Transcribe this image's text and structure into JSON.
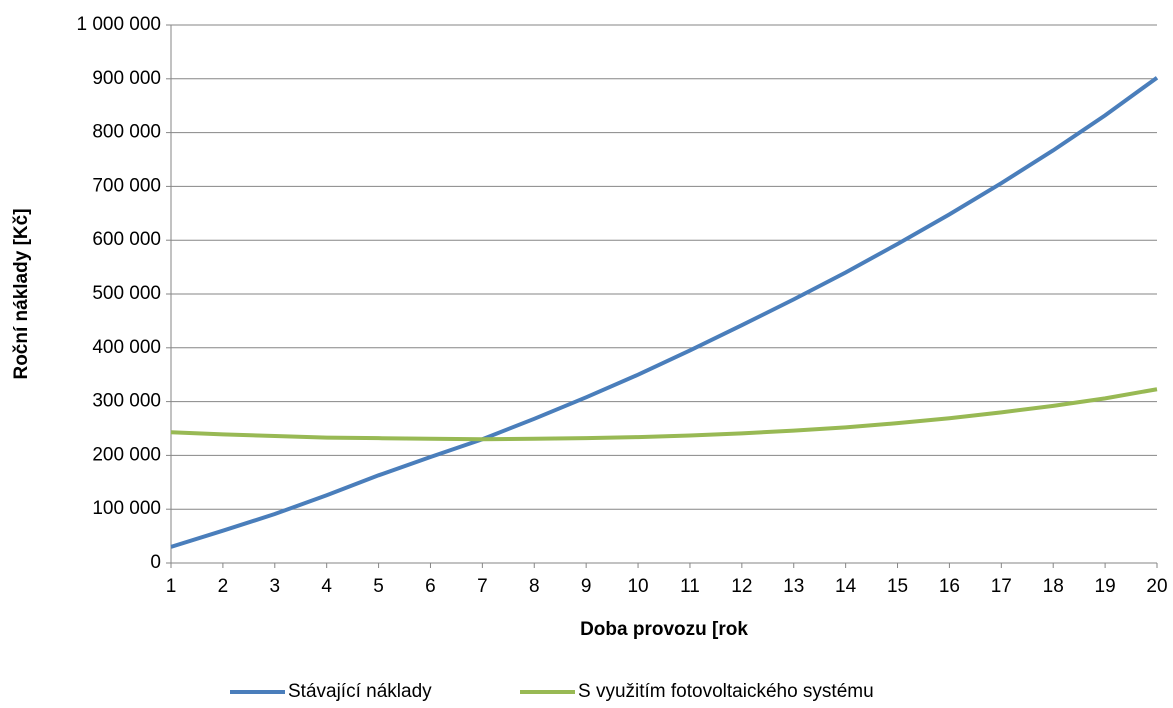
{
  "chart_data": {
    "type": "line",
    "ylabel": "Roční náklady [Kč]",
    "xlabel": "Doba provozu [rok",
    "x": [
      1,
      2,
      3,
      4,
      5,
      6,
      7,
      8,
      9,
      10,
      11,
      12,
      13,
      14,
      15,
      16,
      17,
      18,
      19,
      20
    ],
    "xlim": [
      1,
      20
    ],
    "xticks": [
      1,
      2,
      3,
      4,
      5,
      6,
      7,
      8,
      9,
      10,
      11,
      12,
      13,
      14,
      15,
      16,
      17,
      18,
      19,
      20
    ],
    "ylim": [
      0,
      1000000
    ],
    "yticks": [
      0,
      {
        "value": 100000,
        "label": "100 000"
      },
      {
        "value": 200000,
        "label": "200 000"
      },
      {
        "value": 300000,
        "label": "300 000"
      },
      {
        "value": 400000,
        "label": "400 000"
      },
      {
        "value": 500000,
        "label": "500 000"
      },
      {
        "value": 600000,
        "label": "600 000"
      },
      {
        "value": 700000,
        "label": "700 000"
      },
      {
        "value": 800000,
        "label": "800 000"
      },
      {
        "value": 900000,
        "label": "900 000"
      },
      {
        "value": 1000000,
        "label": "1 000 000"
      }
    ],
    "grid": true,
    "legend": "bottom",
    "series": [
      {
        "name": "Stávající náklady",
        "color": "#4a7ebb",
        "values": [
          30000,
          60000,
          91000,
          126000,
          163000,
          197000,
          230000,
          268000,
          308000,
          350000,
          395000,
          442000,
          490000,
          540000,
          593000,
          648000,
          706000,
          767000,
          832000,
          902000
        ]
      },
      {
        "name": "S využitím fotovoltaického systému",
        "color": "#98b954",
        "values": [
          243000,
          239000,
          236000,
          233000,
          232000,
          231000,
          230000,
          231000,
          232000,
          234000,
          237000,
          241000,
          246000,
          252000,
          260000,
          269000,
          280000,
          292000,
          306000,
          323000
        ]
      }
    ]
  }
}
